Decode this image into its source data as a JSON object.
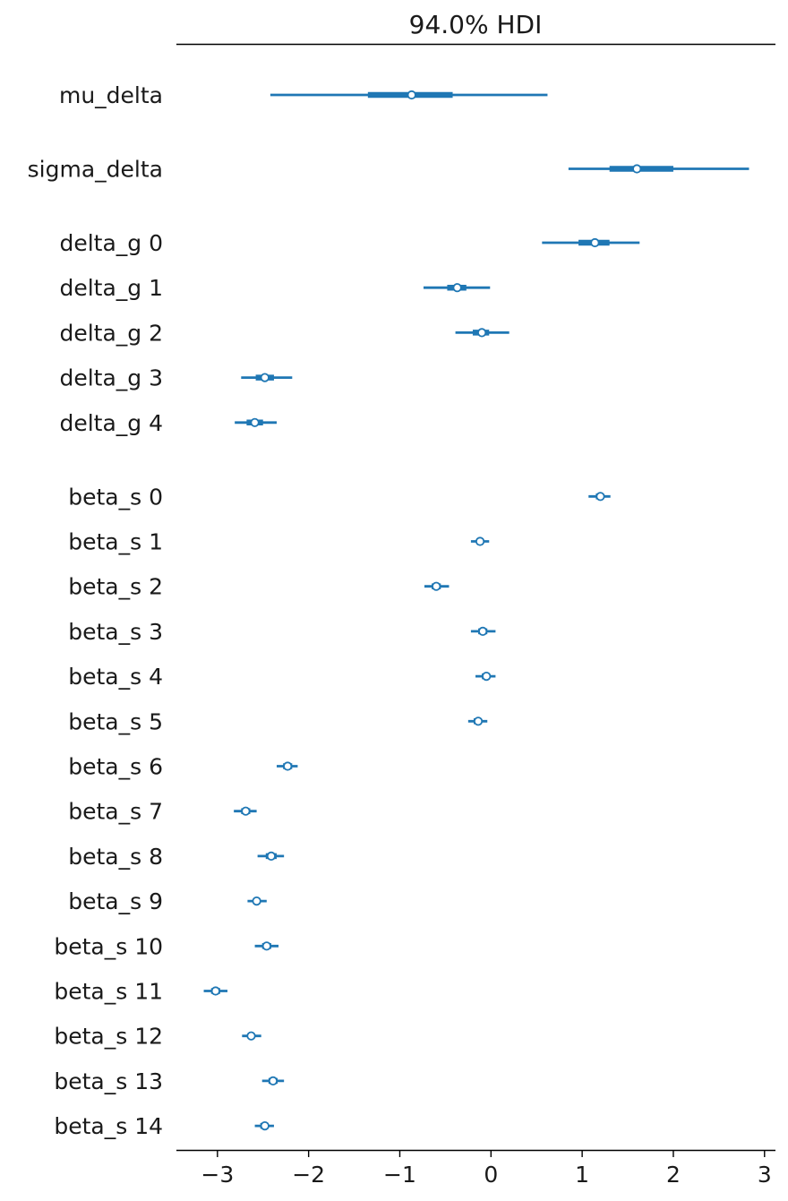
{
  "chart_data": {
    "type": "forest",
    "title": "94.0% HDI",
    "xlim": [
      -3.45,
      3.12
    ],
    "xticks": [
      -3,
      -2,
      -1,
      0,
      1,
      2,
      3
    ],
    "xtick_labels": [
      "−3",
      "−2",
      "−1",
      "0",
      "1",
      "2",
      "3"
    ],
    "color": "#1f77b4",
    "groups": [
      {
        "rows": [
          {
            "label": "mu_delta",
            "hdi94": [
              -2.42,
              0.62
            ],
            "iqr": [
              -1.35,
              -0.42
            ],
            "median": -0.87
          }
        ]
      },
      {
        "rows": [
          {
            "label": "sigma_delta",
            "hdi94": [
              0.85,
              2.83
            ],
            "iqr": [
              1.3,
              2.0
            ],
            "median": 1.6
          }
        ]
      },
      {
        "rows": [
          {
            "label": "delta_g 0",
            "hdi94": [
              0.56,
              1.63
            ],
            "iqr": [
              0.96,
              1.3
            ],
            "median": 1.14
          },
          {
            "label": "delta_g 1",
            "hdi94": [
              -0.74,
              -0.01
            ],
            "iqr": [
              -0.48,
              -0.27
            ],
            "median": -0.37
          },
          {
            "label": "delta_g 2",
            "hdi94": [
              -0.39,
              0.2
            ],
            "iqr": [
              -0.2,
              -0.02
            ],
            "median": -0.1
          },
          {
            "label": "delta_g 3",
            "hdi94": [
              -2.74,
              -2.18
            ],
            "iqr": [
              -2.58,
              -2.38
            ],
            "median": -2.48
          },
          {
            "label": "delta_g 4",
            "hdi94": [
              -2.81,
              -2.35
            ],
            "iqr": [
              -2.68,
              -2.5
            ],
            "median": -2.59
          }
        ]
      },
      {
        "rows": [
          {
            "label": "beta_s 0",
            "hdi94": [
              1.07,
              1.31
            ],
            "iqr": [
              1.15,
              1.24
            ],
            "median": 1.2
          },
          {
            "label": "beta_s 1",
            "hdi94": [
              -0.22,
              -0.02
            ],
            "iqr": [
              -0.16,
              -0.08
            ],
            "median": -0.12
          },
          {
            "label": "beta_s 2",
            "hdi94": [
              -0.73,
              -0.46
            ],
            "iqr": [
              -0.65,
              -0.55
            ],
            "median": -0.6
          },
          {
            "label": "beta_s 3",
            "hdi94": [
              -0.22,
              0.05
            ],
            "iqr": [
              -0.14,
              -0.04
            ],
            "median": -0.09
          },
          {
            "label": "beta_s 4",
            "hdi94": [
              -0.17,
              0.05
            ],
            "iqr": [
              -0.1,
              -0.01
            ],
            "median": -0.05
          },
          {
            "label": "beta_s 5",
            "hdi94": [
              -0.25,
              -0.04
            ],
            "iqr": [
              -0.19,
              -0.1
            ],
            "median": -0.14
          },
          {
            "label": "beta_s 6",
            "hdi94": [
              -2.35,
              -2.12
            ],
            "iqr": [
              -2.28,
              -2.18
            ],
            "median": -2.23
          },
          {
            "label": "beta_s 7",
            "hdi94": [
              -2.82,
              -2.57
            ],
            "iqr": [
              -2.74,
              -2.64
            ],
            "median": -2.69
          },
          {
            "label": "beta_s 8",
            "hdi94": [
              -2.56,
              -2.27
            ],
            "iqr": [
              -2.47,
              -2.35
            ],
            "median": -2.41
          },
          {
            "label": "beta_s 9",
            "hdi94": [
              -2.67,
              -2.46
            ],
            "iqr": [
              -2.61,
              -2.53
            ],
            "median": -2.57
          },
          {
            "label": "beta_s 10",
            "hdi94": [
              -2.59,
              -2.33
            ],
            "iqr": [
              -2.51,
              -2.41
            ],
            "median": -2.46
          },
          {
            "label": "beta_s 11",
            "hdi94": [
              -3.15,
              -2.89
            ],
            "iqr": [
              -3.07,
              -2.97
            ],
            "median": -3.02
          },
          {
            "label": "beta_s 12",
            "hdi94": [
              -2.73,
              -2.52
            ],
            "iqr": [
              -2.67,
              -2.59
            ],
            "median": -2.63
          },
          {
            "label": "beta_s 13",
            "hdi94": [
              -2.51,
              -2.27
            ],
            "iqr": [
              -2.44,
              -2.34
            ],
            "median": -2.39
          },
          {
            "label": "beta_s 14",
            "hdi94": [
              -2.59,
              -2.38
            ],
            "iqr": [
              -2.53,
              -2.44
            ],
            "median": -2.48
          }
        ]
      }
    ]
  }
}
